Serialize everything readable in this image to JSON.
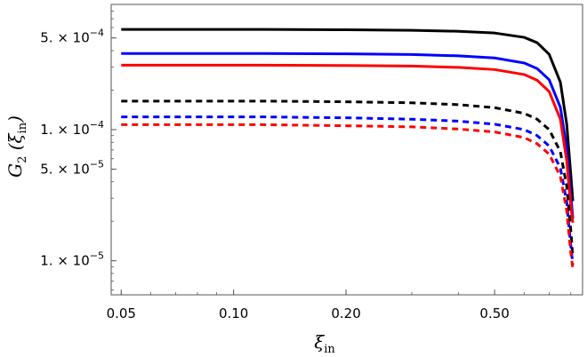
{
  "chart_data": {
    "type": "line",
    "title": "",
    "xlabel": "ξin",
    "ylabel": "G2 (ξin)",
    "x_scale": "log",
    "y_scale": "log",
    "xlim": [
      0.047,
      0.86
    ],
    "ylim": [
      5.5e-06,
      0.0009
    ],
    "x_ticks": [
      0.05,
      0.1,
      0.2,
      0.5
    ],
    "x_tick_labels": [
      "0.05",
      "0.10",
      "0.20",
      "0.50"
    ],
    "y_ticks": [
      1e-05,
      5e-05,
      0.0001,
      0.0005
    ],
    "y_tick_labels": [
      {
        "mant": "1. × 10",
        "exp": "−5"
      },
      {
        "mant": "5. × 10",
        "exp": "−5"
      },
      {
        "mant": "1. × 10",
        "exp": "−4"
      },
      {
        "mant": "5. × 10",
        "exp": "−4"
      }
    ],
    "grid": false,
    "x": [
      0.05,
      0.08,
      0.12,
      0.2,
      0.3,
      0.4,
      0.5,
      0.6,
      0.65,
      0.7,
      0.75,
      0.78,
      0.8,
      0.81
    ],
    "series": [
      {
        "color": "#000000",
        "dash": "solid",
        "values": [
          0.00058,
          0.00058,
          0.00058,
          0.000577,
          0.000572,
          0.000562,
          0.000545,
          0.000505,
          0.00046,
          0.000375,
          0.00023,
          0.00011,
          4.5e-05,
          2.85e-05
        ]
      },
      {
        "color": "#0000ff",
        "dash": "solid",
        "values": [
          0.00038,
          0.00038,
          0.00038,
          0.000378,
          0.000374,
          0.000365,
          0.000352,
          0.000322,
          0.000292,
          0.00024,
          0.000148,
          7.2e-05,
          3.1e-05,
          2.1e-05
        ]
      },
      {
        "color": "#ff0000",
        "dash": "solid",
        "values": [
          0.00031,
          0.00031,
          0.00031,
          0.000308,
          0.000305,
          0.000298,
          0.000287,
          0.000263,
          0.000238,
          0.000195,
          0.00012,
          5.8e-05,
          2.6e-05,
          1.95e-05
        ]
      },
      {
        "color": "#000000",
        "dash": "dashed",
        "values": [
          0.000165,
          0.000165,
          0.000165,
          0.000163,
          0.00016,
          0.000155,
          0.000147,
          0.000133,
          0.00012,
          0.0001,
          6.8e-05,
          3.7e-05,
          1.7e-05,
          1.05e-05
        ]
      },
      {
        "color": "#0000ff",
        "dash": "dashed",
        "values": [
          0.000125,
          0.000125,
          0.000125,
          0.000123,
          0.00012,
          0.000116,
          0.00011,
          0.0001,
          9e-05,
          7.5e-05,
          5.1e-05,
          2.8e-05,
          1.3e-05,
          9.3e-06
        ]
      },
      {
        "color": "#ff0000",
        "dash": "dashed",
        "values": [
          0.000109,
          0.000109,
          0.000109,
          0.000107,
          0.000105,
          0.000101,
          9.6e-05,
          8.7e-05,
          7.8e-05,
          6.5e-05,
          4.4e-05,
          2.4e-05,
          1.15e-05,
          8.7e-06
        ]
      }
    ]
  }
}
